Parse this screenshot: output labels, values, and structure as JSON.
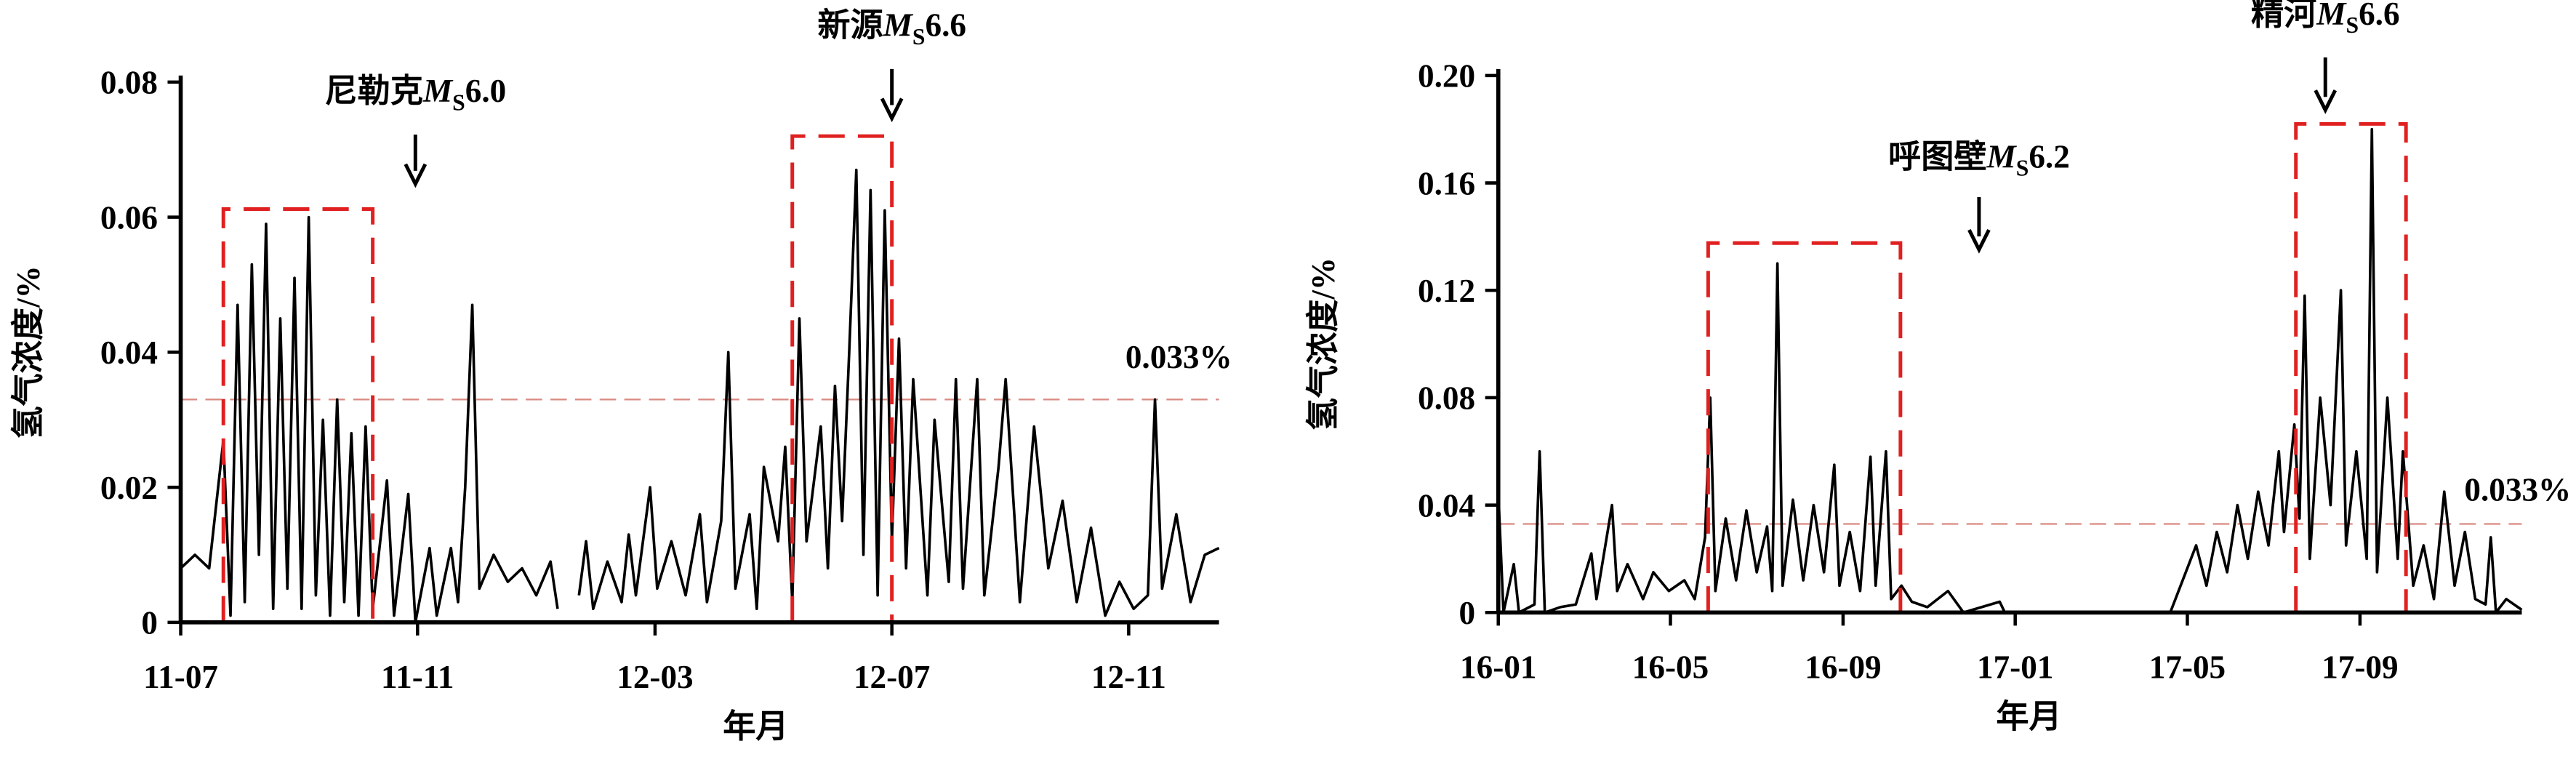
{
  "chart_data": [
    {
      "type": "line",
      "x_label": "年月",
      "y_label": "氢气浓度/%",
      "color": "#000000",
      "xlim": [
        2011.5,
        2012.96
      ],
      "ylim": [
        0,
        0.08
      ],
      "xticks": [
        {
          "value": 2011.5,
          "label": "11-07"
        },
        {
          "value": 2011.833,
          "label": "11-11"
        },
        {
          "value": 2012.167,
          "label": "12-03"
        },
        {
          "value": 2012.5,
          "label": "12-07"
        },
        {
          "value": 2012.833,
          "label": "12-11"
        }
      ],
      "yticks": [
        0,
        0.02,
        0.04,
        0.06,
        0.08
      ],
      "x": [
        2011.5,
        2011.52,
        2011.54,
        2011.56,
        2011.57,
        2011.58,
        2011.59,
        2011.6,
        2011.61,
        2011.62,
        2011.63,
        2011.64,
        2011.65,
        2011.66,
        2011.67,
        2011.68,
        2011.69,
        2011.7,
        2011.71,
        2011.72,
        2011.73,
        2011.74,
        2011.75,
        2011.76,
        2011.77,
        2011.79,
        2011.8,
        2011.82,
        2011.83,
        2011.85,
        2011.86,
        2011.88,
        2011.89,
        2011.9,
        2011.91,
        2011.92,
        2011.94,
        2011.96,
        2011.98,
        2012.0,
        2012.02,
        2012.03,
        2012.04,
        2012.06,
        2012.07,
        2012.08,
        2012.1,
        2012.12,
        2012.13,
        2012.14,
        2012.16,
        2012.17,
        2012.19,
        2012.21,
        2012.23,
        2012.24,
        2012.26,
        2012.27,
        2012.28,
        2012.3,
        2012.31,
        2012.32,
        2012.34,
        2012.35,
        2012.36,
        2012.37,
        2012.38,
        2012.4,
        2012.41,
        2012.42,
        2012.43,
        2012.44,
        2012.45,
        2012.46,
        2012.47,
        2012.48,
        2012.49,
        2012.5,
        2012.51,
        2012.52,
        2012.53,
        2012.55,
        2012.56,
        2012.58,
        2012.59,
        2012.6,
        2012.62,
        2012.63,
        2012.65,
        2012.66,
        2012.68,
        2012.7,
        2012.72,
        2012.74,
        2012.76,
        2012.78,
        2012.8,
        2012.82,
        2012.84,
        2012.86,
        2012.87,
        2012.88,
        2012.9,
        2012.92,
        2012.94,
        2012.96
      ],
      "values": [
        0.008,
        0.01,
        0.008,
        0.027,
        0.001,
        0.047,
        0.003,
        0.053,
        0.01,
        0.059,
        0.002,
        0.045,
        0.005,
        0.051,
        0.002,
        0.06,
        0.004,
        0.03,
        0.001,
        0.033,
        0.003,
        0.028,
        0.001,
        0.029,
        0.002,
        0.021,
        0.001,
        0.019,
        0,
        0.011,
        0.001,
        0.011,
        0.003,
        0.02,
        0.047,
        0.005,
        0.01,
        0.006,
        0.008,
        0.004,
        0.009,
        0.002,
        null,
        0.004,
        0.012,
        0.002,
        0.009,
        0.003,
        0.013,
        0.004,
        0.02,
        0.005,
        0.012,
        0.004,
        0.016,
        0.003,
        0.015,
        0.04,
        0.005,
        0.016,
        0.002,
        0.023,
        0.012,
        0.026,
        0.003,
        0.045,
        0.012,
        0.029,
        0.008,
        0.035,
        0.015,
        0.04,
        0.067,
        0.01,
        0.064,
        0.004,
        0.061,
        0.012,
        0.042,
        0.008,
        0.036,
        0.004,
        0.03,
        0.006,
        0.036,
        0.005,
        0.036,
        0.004,
        0.023,
        0.036,
        0.003,
        0.029,
        0.008,
        0.018,
        0.003,
        0.014,
        0.001,
        0.006,
        0.002,
        0.004,
        0.033,
        0.005,
        0.016,
        0.003,
        0.01,
        0.011
      ],
      "threshold": {
        "value": 0.033,
        "label": "0.033%",
        "color": "#d98a80"
      },
      "anomaly_boxes": [
        {
          "x": [
            2011.56,
            2011.77
          ],
          "top": 0.0612
        },
        {
          "x": [
            2012.36,
            2012.5
          ],
          "top": 0.072
        }
      ],
      "box_color": "#e02020",
      "annotations": [
        {
          "x": 2011.83,
          "name": "尼勒克",
          "symbol": "M",
          "subscript": "S",
          "magnitude": "6.0"
        },
        {
          "x": 2012.5,
          "name": "新源",
          "symbol": "M",
          "subscript": "S",
          "magnitude": "6.6"
        }
      ]
    },
    {
      "type": "line",
      "x_label": "年月",
      "y_label": "氢气浓度/%",
      "color": "#000000",
      "xlim": [
        2016.0,
        2017.98
      ],
      "ylim": [
        0,
        0.2
      ],
      "xticks": [
        {
          "value": 2016.0,
          "label": "16-01"
        },
        {
          "value": 2016.333,
          "label": "16-05"
        },
        {
          "value": 2016.667,
          "label": "16-09"
        },
        {
          "value": 2017.0,
          "label": "17-01"
        },
        {
          "value": 2017.333,
          "label": "17-05"
        },
        {
          "value": 2017.667,
          "label": "17-09"
        }
      ],
      "yticks": [
        0,
        0.04,
        0.08,
        0.12,
        0.16,
        {
          "value": 0.2,
          "label": "0.20"
        }
      ],
      "x": [
        2016.0,
        2016.01,
        2016.03,
        2016.04,
        2016.07,
        2016.08,
        2016.09,
        2016.12,
        2016.15,
        2016.18,
        2016.19,
        2016.22,
        2016.23,
        2016.25,
        2016.28,
        2016.3,
        2016.33,
        2016.36,
        2016.38,
        2016.4,
        2016.41,
        2016.42,
        2016.44,
        2016.46,
        2016.48,
        2016.5,
        2016.52,
        2016.53,
        2016.54,
        2016.55,
        2016.57,
        2016.59,
        2016.61,
        2016.63,
        2016.65,
        2016.66,
        2016.68,
        2016.7,
        2016.72,
        2016.73,
        2016.75,
        2016.76,
        2016.78,
        2016.8,
        2016.83,
        2016.87,
        2016.9,
        2016.97,
        2016.98,
        2017.3,
        2017.33,
        2017.35,
        2017.37,
        2017.39,
        2017.41,
        2017.43,
        2017.45,
        2017.47,
        2017.49,
        2017.51,
        2017.52,
        2017.54,
        2017.55,
        2017.56,
        2017.57,
        2017.59,
        2017.61,
        2017.63,
        2017.64,
        2017.66,
        2017.68,
        2017.69,
        2017.7,
        2017.72,
        2017.74,
        2017.75,
        2017.77,
        2017.79,
        2017.81,
        2017.83,
        2017.85,
        2017.87,
        2017.89,
        2017.91,
        2017.92,
        2017.93,
        2017.95,
        2017.98
      ],
      "values": [
        0.045,
        0,
        0.018,
        0,
        0.003,
        0.06,
        0,
        0.002,
        0.003,
        0.022,
        0.005,
        0.04,
        0.008,
        0.018,
        0.005,
        0.015,
        0.008,
        0.012,
        0.005,
        0.028,
        0.08,
        0.008,
        0.035,
        0.012,
        0.038,
        0.015,
        0.032,
        0.008,
        0.13,
        0.01,
        0.042,
        0.012,
        0.04,
        0.015,
        0.055,
        0.01,
        0.03,
        0.008,
        0.058,
        0.01,
        0.06,
        0.005,
        0.01,
        0.004,
        0.002,
        0.008,
        0,
        0.004,
        0,
        0,
        0.015,
        0.025,
        0.01,
        0.03,
        0.015,
        0.04,
        0.02,
        0.045,
        0.025,
        0.06,
        0.03,
        0.07,
        0.035,
        0.118,
        0.02,
        0.08,
        0.04,
        0.12,
        0.025,
        0.06,
        0.02,
        0.18,
        0.015,
        0.08,
        0.02,
        0.06,
        0.01,
        0.025,
        0.005,
        0.045,
        0.01,
        0.03,
        0.005,
        0.003,
        0.028,
        0,
        0.005,
        0.001
      ],
      "threshold": {
        "value": 0.033,
        "label": "0.033%",
        "color": "#d98a80"
      },
      "anomaly_boxes": [
        {
          "x": [
            2016.406,
            2016.778
          ],
          "top": 0.1376
        },
        {
          "x": [
            2017.543,
            2017.756
          ],
          "top": 0.182
        }
      ],
      "box_color": "#e02020",
      "annotations": [
        {
          "x": 2016.93,
          "name": "呼图壁",
          "symbol": "M",
          "subscript": "S",
          "magnitude": "6.2"
        },
        {
          "x": 2017.6,
          "name": "精河",
          "symbol": "M",
          "subscript": "S",
          "magnitude": "6.6"
        }
      ]
    }
  ]
}
